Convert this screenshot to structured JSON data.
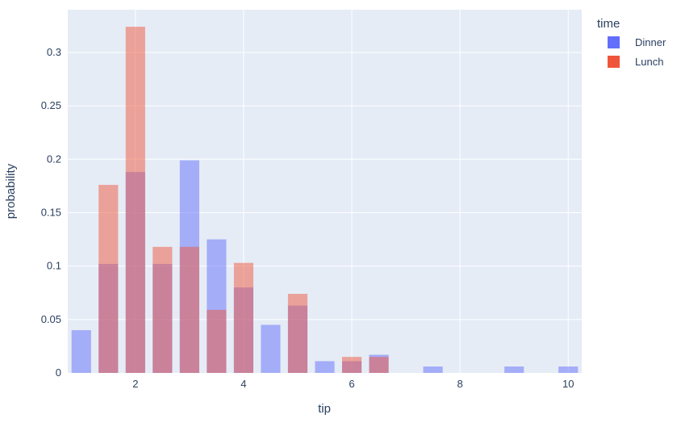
{
  "chart_data": {
    "type": "bar",
    "barmode": "overlay",
    "xlabel": "tip",
    "ylabel": "probability",
    "xlim": [
      0.75,
      10.25
    ],
    "ylim": [
      0,
      0.34
    ],
    "x_ticks": [
      2,
      4,
      6,
      8,
      10
    ],
    "y_ticks": [
      0,
      0.05,
      0.1,
      0.15,
      0.2,
      0.25,
      0.3
    ],
    "y_tick_labels": [
      "0",
      "0.05",
      "0.1",
      "0.15",
      "0.2",
      "0.25",
      "0.3"
    ],
    "grid": true,
    "legend": {
      "title": "time",
      "placement": "top-right"
    },
    "bin_width": 0.5,
    "series": [
      {
        "name": "Dinner",
        "color": "#636efa",
        "x": [
          1.0,
          1.5,
          2.0,
          2.5,
          3.0,
          3.5,
          4.0,
          4.5,
          5.0,
          5.5,
          6.0,
          6.5,
          7.0,
          7.5,
          8.0,
          8.5,
          9.0,
          9.5,
          10.0
        ],
        "values": [
          0.04,
          0.102,
          0.188,
          0.102,
          0.199,
          0.125,
          0.08,
          0.045,
          0.063,
          0.011,
          0.011,
          0.017,
          0,
          0.006,
          0,
          0,
          0.006,
          0,
          0.006
        ]
      },
      {
        "name": "Lunch",
        "color": "#ef553b",
        "x": [
          1.0,
          1.5,
          2.0,
          2.5,
          3.0,
          3.5,
          4.0,
          4.5,
          5.0,
          5.5,
          6.0,
          6.5,
          7.0,
          7.5,
          8.0,
          8.5,
          9.0,
          9.5,
          10.0
        ],
        "values": [
          0,
          0.176,
          0.324,
          0.118,
          0.118,
          0.059,
          0.103,
          0,
          0.074,
          0,
          0.015,
          0.015,
          0,
          0,
          0,
          0,
          0,
          0,
          0
        ]
      }
    ]
  }
}
